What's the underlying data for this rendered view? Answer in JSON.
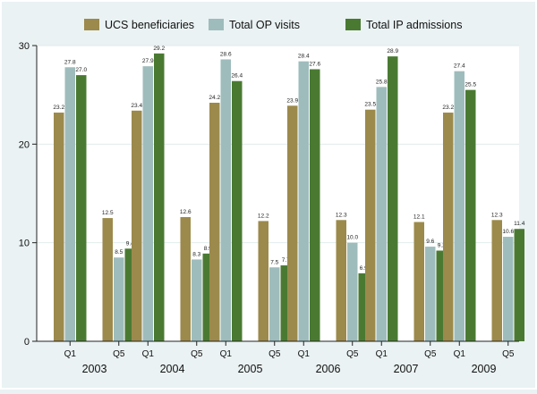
{
  "chart_data": {
    "type": "bar",
    "ylim": [
      0,
      30
    ],
    "yticks": [
      0,
      10,
      20,
      30
    ],
    "groups": [
      {
        "year": "2003",
        "quintiles": [
          {
            "label": "Q1",
            "values": [
              23.2,
              27.8,
              27.0
            ]
          },
          {
            "label": "Q5",
            "values": [
              12.5,
              8.5,
              9.4
            ]
          }
        ]
      },
      {
        "year": "2004",
        "quintiles": [
          {
            "label": "Q1",
            "values": [
              23.4,
              27.9,
              29.2
            ]
          },
          {
            "label": "Q5",
            "values": [
              12.6,
              8.3,
              8.9
            ]
          }
        ]
      },
      {
        "year": "2005",
        "quintiles": [
          {
            "label": "Q1",
            "values": [
              24.2,
              28.6,
              26.4
            ]
          },
          {
            "label": "Q5",
            "values": [
              12.2,
              7.5,
              7.7
            ]
          }
        ]
      },
      {
        "year": "2006",
        "quintiles": [
          {
            "label": "Q1",
            "values": [
              23.9,
              28.4,
              27.6
            ]
          },
          {
            "label": "Q5",
            "values": [
              12.3,
              10.0,
              6.9
            ]
          }
        ]
      },
      {
        "year": "2007",
        "quintiles": [
          {
            "label": "Q1",
            "values": [
              23.5,
              25.8,
              28.9
            ]
          },
          {
            "label": "Q5",
            "values": [
              12.1,
              9.6,
              9.2
            ]
          }
        ]
      },
      {
        "year": "2009",
        "quintiles": [
          {
            "label": "Q1",
            "values": [
              23.2,
              27.4,
              25.5
            ]
          },
          {
            "label": "Q5",
            "values": [
              12.3,
              10.6,
              11.4
            ]
          }
        ]
      }
    ],
    "series": [
      {
        "name": "UCS beneficiaries",
        "color": "#9c8a4c"
      },
      {
        "name": "Total OP visits",
        "color": "#9fbcbc"
      },
      {
        "name": "Total IP admissions",
        "color": "#4a7a32"
      }
    ],
    "legend_position": "top",
    "grid": true
  }
}
